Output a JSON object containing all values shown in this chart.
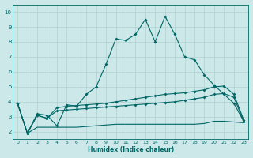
{
  "xlabel": "Humidex (Indice chaleur)",
  "bg_color": "#cce8e8",
  "grid_color": "#b0d0d0",
  "line_color": "#006666",
  "xlim": [
    -0.5,
    23.5
  ],
  "ylim": [
    1.5,
    10.5
  ],
  "xticks": [
    0,
    1,
    2,
    3,
    4,
    5,
    6,
    7,
    8,
    9,
    10,
    11,
    12,
    13,
    14,
    15,
    16,
    17,
    18,
    19,
    20,
    21,
    22,
    23
  ],
  "yticks": [
    2,
    3,
    4,
    5,
    6,
    7,
    8,
    9,
    10
  ],
  "series1_x": [
    0,
    1,
    2,
    3,
    4,
    5,
    6,
    7,
    8,
    9,
    10,
    11,
    12,
    13,
    14,
    15,
    16,
    17,
    18,
    19,
    20,
    21,
    22,
    23
  ],
  "series1_y": [
    3.9,
    1.9,
    3.2,
    3.1,
    2.4,
    3.8,
    3.7,
    4.5,
    5.0,
    6.5,
    8.2,
    8.1,
    8.5,
    9.5,
    8.0,
    9.7,
    8.5,
    7.0,
    6.8,
    5.8,
    5.1,
    4.5,
    3.9,
    2.7
  ],
  "series2_x": [
    0,
    1,
    2,
    3,
    4,
    5,
    6,
    7,
    8,
    9,
    10,
    11,
    12,
    13,
    14,
    15,
    16,
    17,
    18,
    19,
    20,
    21,
    22,
    23
  ],
  "series2_y": [
    3.9,
    1.9,
    3.1,
    2.9,
    3.6,
    3.7,
    3.75,
    3.8,
    3.85,
    3.9,
    4.0,
    4.1,
    4.2,
    4.3,
    4.4,
    4.5,
    4.55,
    4.6,
    4.7,
    4.8,
    5.0,
    5.05,
    4.5,
    2.8
  ],
  "series3_x": [
    0,
    1,
    2,
    3,
    4,
    5,
    6,
    7,
    8,
    9,
    10,
    11,
    12,
    13,
    14,
    15,
    16,
    17,
    18,
    19,
    20,
    21,
    22,
    23
  ],
  "series3_y": [
    3.9,
    1.9,
    3.1,
    2.9,
    3.4,
    3.45,
    3.5,
    3.55,
    3.6,
    3.65,
    3.7,
    3.75,
    3.8,
    3.85,
    3.9,
    3.95,
    4.0,
    4.1,
    4.2,
    4.3,
    4.5,
    4.55,
    4.3,
    2.7
  ],
  "series4_x": [
    0,
    1,
    2,
    3,
    4,
    5,
    6,
    7,
    8,
    9,
    10,
    11,
    12,
    13,
    14,
    15,
    16,
    17,
    18,
    19,
    20,
    21,
    22,
    23
  ],
  "series4_y": [
    3.9,
    1.9,
    2.3,
    2.3,
    2.3,
    2.3,
    2.3,
    2.35,
    2.4,
    2.45,
    2.5,
    2.5,
    2.5,
    2.5,
    2.5,
    2.5,
    2.5,
    2.5,
    2.5,
    2.55,
    2.7,
    2.7,
    2.65,
    2.6
  ]
}
